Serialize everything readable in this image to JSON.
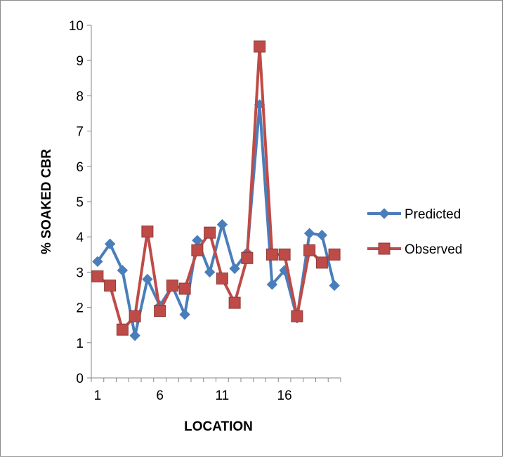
{
  "chart_data": {
    "type": "line",
    "xlabel": "LOCATION",
    "ylabel": "% SOAKED CBR",
    "ylim": [
      0,
      10
    ],
    "yticks": [
      0,
      1,
      2,
      3,
      4,
      5,
      6,
      7,
      8,
      9,
      10
    ],
    "xticks": [
      1,
      6,
      11,
      16
    ],
    "x": [
      1,
      2,
      3,
      4,
      5,
      6,
      7,
      8,
      9,
      10,
      11,
      12,
      13,
      14,
      15,
      16,
      17,
      18,
      19,
      20
    ],
    "legend_position": "right",
    "grid": false,
    "series": [
      {
        "name": "Predicted",
        "color": "#4a7ebb",
        "marker": "diamond",
        "values": [
          3.3,
          3.8,
          3.05,
          1.2,
          2.8,
          2.05,
          2.6,
          1.8,
          3.9,
          3.0,
          4.35,
          3.1,
          3.55,
          7.75,
          2.65,
          3.05,
          1.7,
          4.1,
          4.05,
          2.62
        ]
      },
      {
        "name": "Observed",
        "color": "#be4b48",
        "marker": "square",
        "values": [
          2.88,
          2.62,
          1.37,
          1.75,
          4.15,
          1.9,
          2.62,
          2.53,
          3.62,
          4.12,
          2.82,
          2.13,
          3.4,
          9.4,
          3.5,
          3.5,
          1.75,
          3.62,
          3.27,
          3.5
        ]
      }
    ]
  }
}
